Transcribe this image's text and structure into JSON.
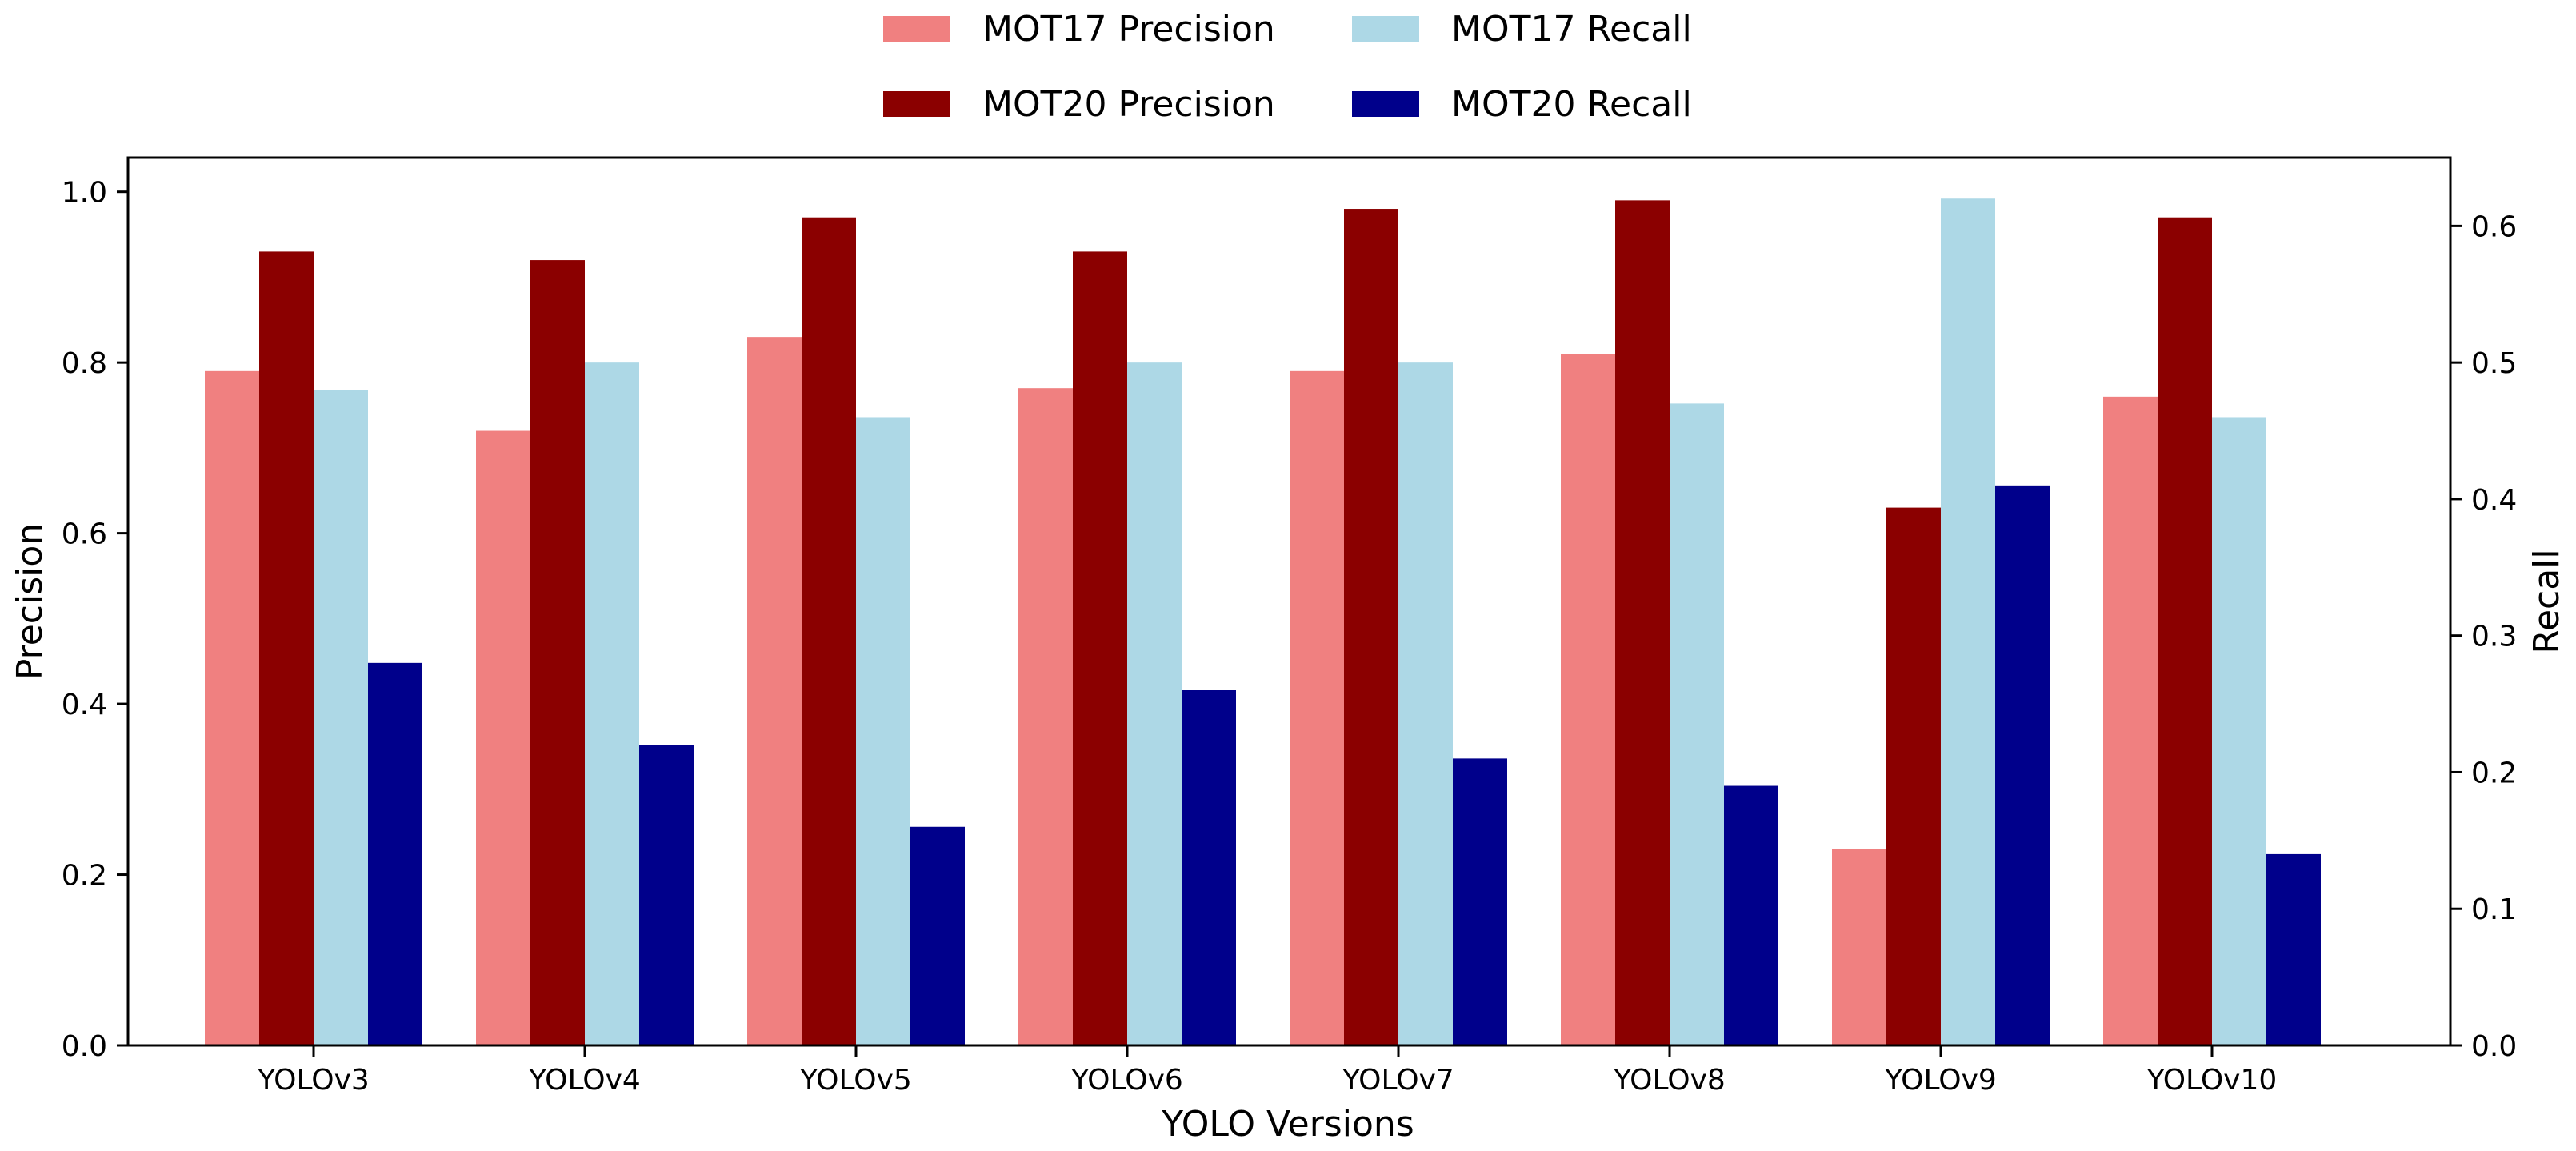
{
  "chart_data": {
    "type": "bar",
    "xlabel": "YOLO Versions",
    "ylabel_left": "Precision",
    "ylabel_right": "Recall",
    "categories": [
      "YOLOv3",
      "YOLOv4",
      "YOLOv5",
      "YOLOv6",
      "YOLOv7",
      "YOLOv8",
      "YOLOv9",
      "YOLOv10"
    ],
    "ylim_left": [
      0,
      1.04
    ],
    "ylim_right": [
      0,
      0.65
    ],
    "yticks_left": [
      "0.0",
      "0.2",
      "0.4",
      "0.6",
      "0.8",
      "1.0"
    ],
    "yticks_right": [
      "0.0",
      "0.1",
      "0.2",
      "0.3",
      "0.4",
      "0.5",
      "0.6"
    ],
    "legend_position": "top-center",
    "series": [
      {
        "name": "MOT17 Precision",
        "axis": "left",
        "color": "#f08080",
        "values": [
          0.79,
          0.72,
          0.83,
          0.77,
          0.79,
          0.81,
          0.23,
          0.76
        ]
      },
      {
        "name": "MOT20 Precision",
        "axis": "left",
        "color": "#8b0000",
        "values": [
          0.93,
          0.92,
          0.97,
          0.93,
          0.98,
          0.99,
          0.63,
          0.97
        ]
      },
      {
        "name": "MOT17 Recall",
        "axis": "right",
        "color": "#add8e6",
        "values": [
          0.48,
          0.5,
          0.46,
          0.5,
          0.5,
          0.47,
          0.62,
          0.46
        ]
      },
      {
        "name": "MOT20 Recall",
        "axis": "right",
        "color": "#00008b",
        "values": [
          0.28,
          0.22,
          0.16,
          0.26,
          0.21,
          0.19,
          0.41,
          0.14
        ]
      }
    ]
  }
}
